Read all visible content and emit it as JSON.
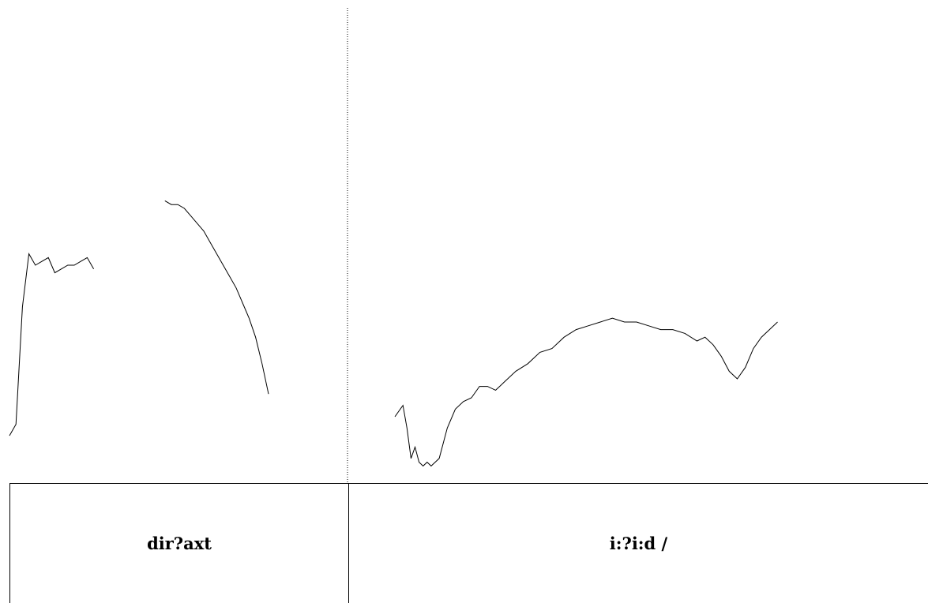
{
  "chart_data": {
    "type": "line",
    "title": "",
    "xlabel": "",
    "ylabel": "",
    "grid": false,
    "legend": "none",
    "ylim": [
      0,
      100
    ],
    "panels": [
      {
        "label": "dir?axt",
        "series": [
          {
            "x": [
              0,
              2,
              4,
              6,
              8,
              10,
              12,
              14,
              16,
              18,
              20,
              22,
              24,
              26
            ],
            "y": [
              10,
              13,
              44,
              58,
              55,
              56,
              57,
              53,
              54,
              55,
              55,
              56,
              57,
              54
            ]
          },
          {
            "x": [
              48,
              50,
              52,
              54,
              56,
              58,
              60,
              62,
              64,
              66,
              68,
              70,
              72,
              74,
              76,
              78,
              80
            ],
            "y": [
              72,
              71,
              71,
              70,
              68,
              66,
              64,
              61,
              58,
              55,
              52,
              49,
              45,
              41,
              36,
              29,
              21
            ]
          }
        ]
      },
      {
        "label": "i:?i:d /",
        "series": [
          {
            "x": [
              0,
              2,
              3,
              4,
              5,
              6,
              7,
              8,
              9,
              10,
              11,
              12,
              13,
              15,
              17,
              19,
              21,
              23,
              25,
              27,
              30,
              33,
              36,
              39,
              42,
              45,
              48,
              51,
              54,
              57,
              60,
              63,
              66,
              69,
              72,
              75,
              77,
              79,
              81,
              83,
              85,
              87,
              89,
              91,
              93,
              95
            ],
            "y": [
              15,
              18,
              12,
              4,
              7,
              3,
              2,
              3,
              2,
              3,
              4,
              8,
              12,
              17,
              19,
              20,
              23,
              23,
              22,
              24,
              27,
              29,
              32,
              33,
              36,
              38,
              39,
              40,
              41,
              40,
              40,
              39,
              38,
              38,
              37,
              35,
              36,
              34,
              31,
              27,
              25,
              28,
              33,
              36,
              38,
              40
            ]
          }
        ]
      }
    ]
  }
}
